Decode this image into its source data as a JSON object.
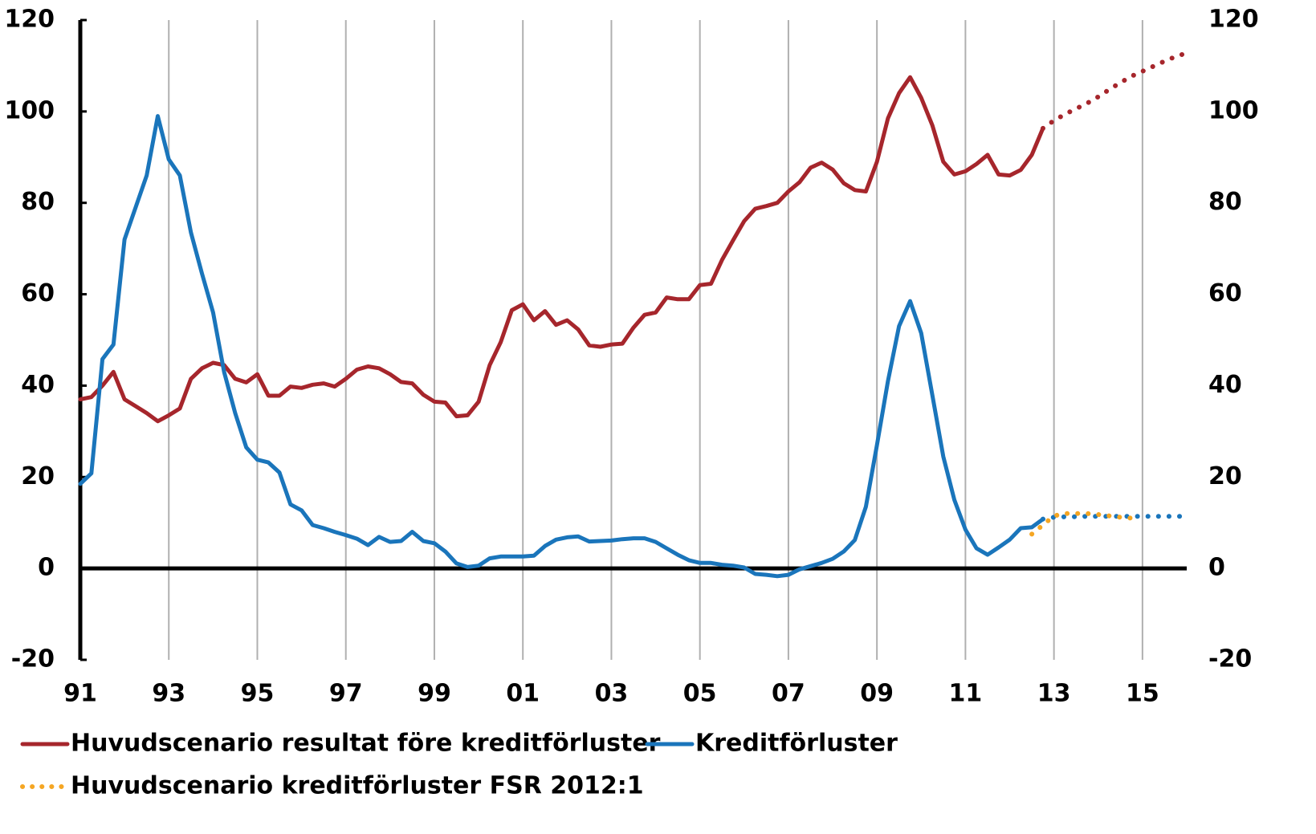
{
  "chart_data": {
    "type": "line",
    "xlim": [
      1991,
      2016
    ],
    "xticks": [
      {
        "value": 1991,
        "label": "91"
      },
      {
        "value": 1993,
        "label": "93"
      },
      {
        "value": 1995,
        "label": "95"
      },
      {
        "value": 1997,
        "label": "97"
      },
      {
        "value": 1999,
        "label": "99"
      },
      {
        "value": 2001,
        "label": "01"
      },
      {
        "value": 2003,
        "label": "03"
      },
      {
        "value": 2005,
        "label": "05"
      },
      {
        "value": 2007,
        "label": "07"
      },
      {
        "value": 2009,
        "label": "09"
      },
      {
        "value": 2011,
        "label": "11"
      },
      {
        "value": 2013,
        "label": "13"
      },
      {
        "value": 2015,
        "label": "15"
      }
    ],
    "ylim": [
      -20,
      120
    ],
    "yticks": [
      -20,
      0,
      20,
      40,
      60,
      80,
      100,
      120
    ],
    "y2lim": [
      -20,
      120
    ],
    "y2ticks": [
      -20,
      0,
      20,
      40,
      60,
      80,
      100,
      120
    ],
    "grid": "x",
    "series": [
      {
        "name": "Huvudscenario resultat före kreditförluster",
        "color": "#a6262c",
        "dash": "solid",
        "x": [
          1991,
          1991.25,
          1991.5,
          1991.75,
          1992,
          1992.25,
          1992.5,
          1992.75,
          1993,
          1993.25,
          1993.5,
          1993.75,
          1994,
          1994.25,
          1994.5,
          1994.75,
          1995,
          1995.25,
          1995.5,
          1995.75,
          1996,
          1996.25,
          1996.5,
          1996.75,
          1997,
          1997.25,
          1997.5,
          1997.75,
          1998,
          1998.25,
          1998.5,
          1998.75,
          1999,
          1999.25,
          1999.5,
          1999.75,
          2000,
          2000.25,
          2000.5,
          2000.75,
          2001,
          2001.25,
          2001.5,
          2001.75,
          2002,
          2002.25,
          2002.5,
          2002.75,
          2003,
          2003.25,
          2003.5,
          2003.75,
          2004,
          2004.25,
          2004.5,
          2004.75,
          2005,
          2005.25,
          2005.5,
          2005.75,
          2006,
          2006.25,
          2006.5,
          2006.75,
          2007,
          2007.25,
          2007.5,
          2007.75,
          2008,
          2008.25,
          2008.5,
          2008.75,
          2009,
          2009.25,
          2009.5,
          2009.75,
          2010,
          2010.25,
          2010.5,
          2010.75,
          2011,
          2011.25,
          2011.5,
          2011.75,
          2012,
          2012.25,
          2012.5,
          2012.75
        ],
        "values": [
          37,
          37.5,
          40,
          43,
          37,
          35.5,
          34,
          32.2,
          33.5,
          35,
          41.5,
          43.8,
          45,
          44.5,
          41.5,
          40.7,
          42.5,
          37.8,
          37.8,
          39.8,
          39.5,
          40.2,
          40.5,
          39.8,
          41.5,
          43.5,
          44.2,
          43.8,
          42.5,
          40.8,
          40.5,
          38,
          36.5,
          36.3,
          33.3,
          33.5,
          36.5,
          44.5,
          49.5,
          56.5,
          57.8,
          54.3,
          56.3,
          53.3,
          54.3,
          52.3,
          48.8,
          48.5,
          49,
          49.2,
          52.7,
          55.5,
          56,
          59.3,
          58.9,
          58.9,
          62,
          62.3,
          67.5,
          71.8,
          76,
          78.7,
          79.3,
          80,
          82.5,
          84.5,
          87.7,
          88.8,
          87.3,
          84.3,
          82.8,
          82.5,
          89,
          98.5,
          104,
          107.5,
          103,
          97,
          89,
          86.2,
          86.9,
          88.5,
          90.5,
          86.2,
          86,
          87.2,
          90.5,
          96.3
        ]
      },
      {
        "color": "#a6262c",
        "dash": "dot",
        "x": [
          2012.75,
          2013,
          2013.25,
          2013.5,
          2013.75,
          2014,
          2014.25,
          2014.5,
          2014.75,
          2015,
          2015.25,
          2015.5,
          2015.75,
          2016
        ],
        "values": [
          96.3,
          98,
          99.4,
          100.6,
          101.8,
          103.2,
          104.8,
          106.3,
          107.7,
          108.8,
          109.9,
          111,
          112,
          112.8
        ]
      },
      {
        "name": "Kreditförluster",
        "color": "#1a75bb",
        "dash": "solid",
        "x": [
          1991,
          1991.25,
          1991.5,
          1991.75,
          1992,
          1992.25,
          1992.5,
          1992.75,
          1993,
          1993.25,
          1993.5,
          1993.75,
          1994,
          1994.25,
          1994.5,
          1994.75,
          1995,
          1995.25,
          1995.5,
          1995.75,
          1996,
          1996.25,
          1996.5,
          1996.75,
          1997,
          1997.25,
          1997.5,
          1997.75,
          1998,
          1998.25,
          1998.5,
          1998.75,
          1999,
          1999.25,
          1999.5,
          1999.75,
          2000,
          2000.25,
          2000.5,
          2000.75,
          2001,
          2001.25,
          2001.5,
          2001.75,
          2002,
          2002.25,
          2002.5,
          2002.75,
          2003,
          2003.25,
          2003.5,
          2003.75,
          2004,
          2004.25,
          2004.5,
          2004.75,
          2005,
          2005.25,
          2005.5,
          2005.75,
          2006,
          2006.25,
          2006.5,
          2006.75,
          2007,
          2007.25,
          2007.5,
          2007.75,
          2008,
          2008.25,
          2008.5,
          2008.75,
          2009,
          2009.25,
          2009.5,
          2009.75,
          2010,
          2010.25,
          2010.5,
          2010.75,
          2011,
          2011.25,
          2011.5,
          2011.75,
          2012,
          2012.25,
          2012.5,
          2012.75
        ],
        "values": [
          18.5,
          20.8,
          45.8,
          49,
          72,
          79,
          86,
          99,
          89.5,
          86,
          73.5,
          64.5,
          56,
          43,
          34,
          26.5,
          23.8,
          23.2,
          21,
          14,
          12.7,
          9.5,
          8.8,
          8,
          7.3,
          6.5,
          5.1,
          6.9,
          5.8,
          6,
          8,
          6,
          5.5,
          3.7,
          1.1,
          0.3,
          0.6,
          2.2,
          2.6,
          2.6,
          2.6,
          2.8,
          4.9,
          6.3,
          6.8,
          7,
          5.9,
          6,
          6.1,
          6.4,
          6.6,
          6.6,
          5.8,
          4.4,
          3,
          1.8,
          1.2,
          1.2,
          0.8,
          0.6,
          0.2,
          -1.2,
          -1.4,
          -1.7,
          -1.4,
          -0.2,
          0.5,
          1.2,
          2.1,
          3.7,
          6.2,
          13.5,
          27,
          41,
          53,
          58.5,
          51.5,
          38,
          24.5,
          15,
          8.5,
          4.4,
          3,
          4.6,
          6.3,
          8.8,
          9,
          10.8
        ]
      },
      {
        "color": "#1a75bb",
        "dash": "dot",
        "x": [
          2012.75,
          2013,
          2013.25,
          2013.5,
          2013.75,
          2014,
          2014.25,
          2014.5,
          2014.75,
          2015,
          2015.25,
          2015.5,
          2015.75,
          2016
        ],
        "values": [
          10.8,
          11.2,
          11.3,
          11.3,
          11.4,
          11.4,
          11.4,
          11.4,
          11.4,
          11.4,
          11.4,
          11.4,
          11.4,
          11.4
        ]
      },
      {
        "name": "Huvudscenario kreditförluster FSR 2012:1",
        "color": "#f5a623",
        "dash": "dot",
        "x": [
          2012.5,
          2012.75,
          2013,
          2013.25,
          2013.5,
          2013.75,
          2014,
          2014.25,
          2014.5,
          2014.75
        ],
        "values": [
          7.5,
          9.5,
          11.5,
          12,
          12,
          12,
          11.8,
          11.5,
          11.2,
          11
        ]
      }
    ]
  }
}
